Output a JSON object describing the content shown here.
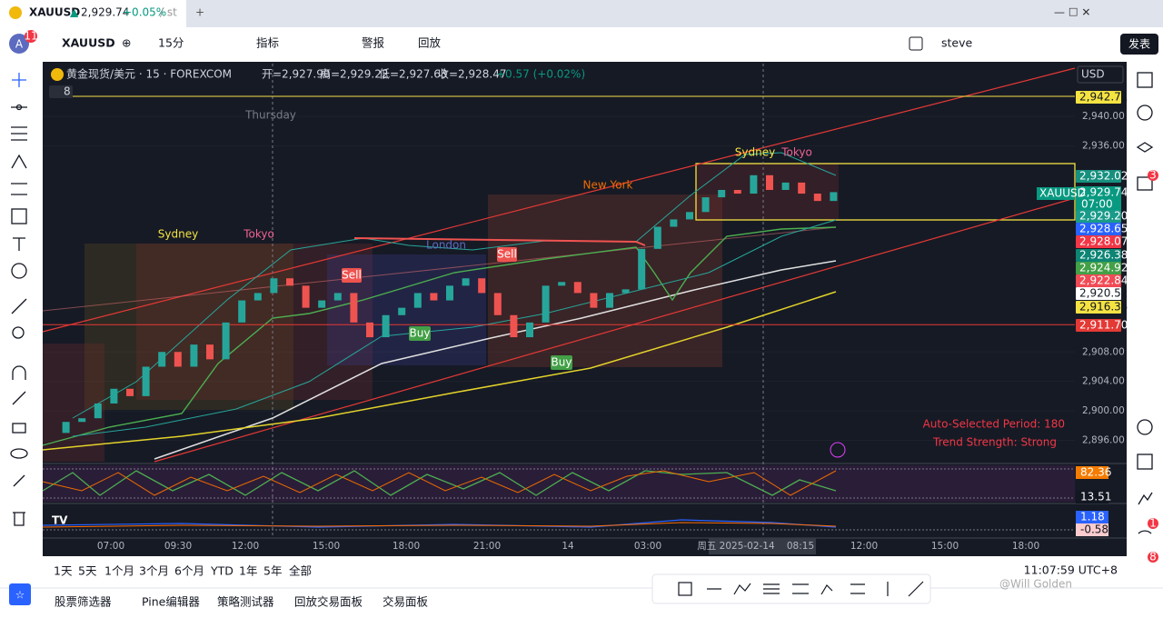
{
  "tab": {
    "symbol": "XAUUSD",
    "arrow": "▲",
    "price": "2,929.74",
    "change": "+0.05%",
    "rest": "/ st"
  },
  "toolbar": {
    "badge": "11",
    "avatar": "A",
    "symbol": "XAUUSD",
    "interval": "15分",
    "indicators": "指标",
    "alerts": "警报",
    "replay": "回放",
    "user": "steve",
    "publish": "发表"
  },
  "legend": {
    "title": "黄金现货/美元 · 15 · FOREXCOM",
    "open": "开=2,927.90",
    "high": "高=2,929.22",
    "low": "低=2,927.63",
    "close": "收=2,928.47",
    "change": "+0.57 (+0.02%)",
    "count": "8",
    "currency": "USD"
  },
  "chart": {
    "ylim": [
      2893.1,
      2947.4
    ],
    "yticks": [
      {
        "value": 2940,
        "label": "2,940.00"
      },
      {
        "value": 2936,
        "label": "2,936.00"
      },
      {
        "value": 2908,
        "label": "2,908.00"
      },
      {
        "value": 2904,
        "label": "2,904.00"
      },
      {
        "value": 2900,
        "label": "2,900.00"
      },
      {
        "value": 2896,
        "label": "2,896.00"
      }
    ],
    "price_tags": [
      {
        "value": 2942.71,
        "label": "2,942.71",
        "color": "#f5e342"
      },
      {
        "value": 2932.02,
        "label": "2,932.02",
        "color": "#17907f"
      },
      {
        "value": 2929.74,
        "label": "2,929.74",
        "color": "#089981"
      },
      {
        "value": 2929.2,
        "label": "2,929.20",
        "color": "#1a9b8a"
      },
      {
        "value": 2928.65,
        "label": "2,928.65",
        "color": "#2962ff"
      },
      {
        "value": 2928.07,
        "label": "2,928.07",
        "color": "#f23645"
      },
      {
        "value": 2926.38,
        "label": "2,926.38",
        "color": "#0d8574"
      },
      {
        "value": 2924.92,
        "label": "2,924.92",
        "color": "#43a047"
      },
      {
        "value": 2922.84,
        "label": "2,922.84",
        "color": "#f04b55"
      },
      {
        "value": 2920.52,
        "label": "2,920.52",
        "color": "#ffffff"
      },
      {
        "value": 2916.35,
        "label": "2,916.35",
        "color": "#f5e342"
      },
      {
        "value": 2911.7,
        "label": "2,911.70",
        "color": "#e53935"
      }
    ],
    "symbol_tag": "XAUUSD",
    "countdown": "07:00",
    "closes": [
      2897,
      2898.5,
      2899,
      2901,
      2903,
      2902,
      2906,
      2908,
      2906,
      2909,
      2907,
      2912,
      2915,
      2916,
      2918,
      2917,
      2914,
      2915,
      2916,
      2912,
      2910,
      2913,
      2914,
      2916,
      2915,
      2917,
      2918,
      2916,
      2913,
      2910,
      2912,
      2917,
      2917.5,
      2916,
      2914,
      2916,
      2916.5,
      2922,
      2925,
      2926,
      2927,
      2929,
      2930,
      2929.5,
      2932,
      2930,
      2931,
      2929.5,
      2928.5,
      2929.7
    ],
    "annotations": {
      "thursday": "Thursday",
      "sydney1": "Sydney",
      "tokyo1": "Tokyo",
      "london": "London",
      "newyork": "New York",
      "sydney2": "Sydney",
      "tokyo2": "Tokyo",
      "sell1": "Sell",
      "sell2": "Sell",
      "buy1": "Buy",
      "buy2": "Buy",
      "period": "Auto-Selected Period: 180",
      "strength": "Trend Strength: Strong"
    },
    "oscillator": {
      "tags": [
        {
          "label": "82.36",
          "color": "#f57c00"
        },
        {
          "label": "13.51",
          "color": "#131722"
        }
      ]
    },
    "macd": {
      "tags": [
        {
          "label": "1.18",
          "color": "#2962ff"
        },
        {
          "label": "-0.58",
          "color": "#fccbcd"
        }
      ]
    },
    "time_axis": [
      "07:00",
      "09:30",
      "12:00",
      "15:00",
      "18:00",
      "21:00",
      "14",
      "03:00",
      "周五 2025-02-14",
      "08:15",
      "12:00",
      "15:00",
      "18:00"
    ]
  },
  "ranges": [
    "1天",
    "5天",
    "1个月",
    "3个月",
    "6个月",
    "YTD",
    "1年",
    "5年",
    "全部"
  ],
  "clock": "11:07:59 UTC+8",
  "panels": [
    "股票筛选器",
    "Pine编辑器",
    "策略测试器",
    "回放交易面板",
    "交易面板"
  ],
  "watermark": "@Will Golden",
  "side_badges": [
    "3",
    "1",
    "8"
  ]
}
